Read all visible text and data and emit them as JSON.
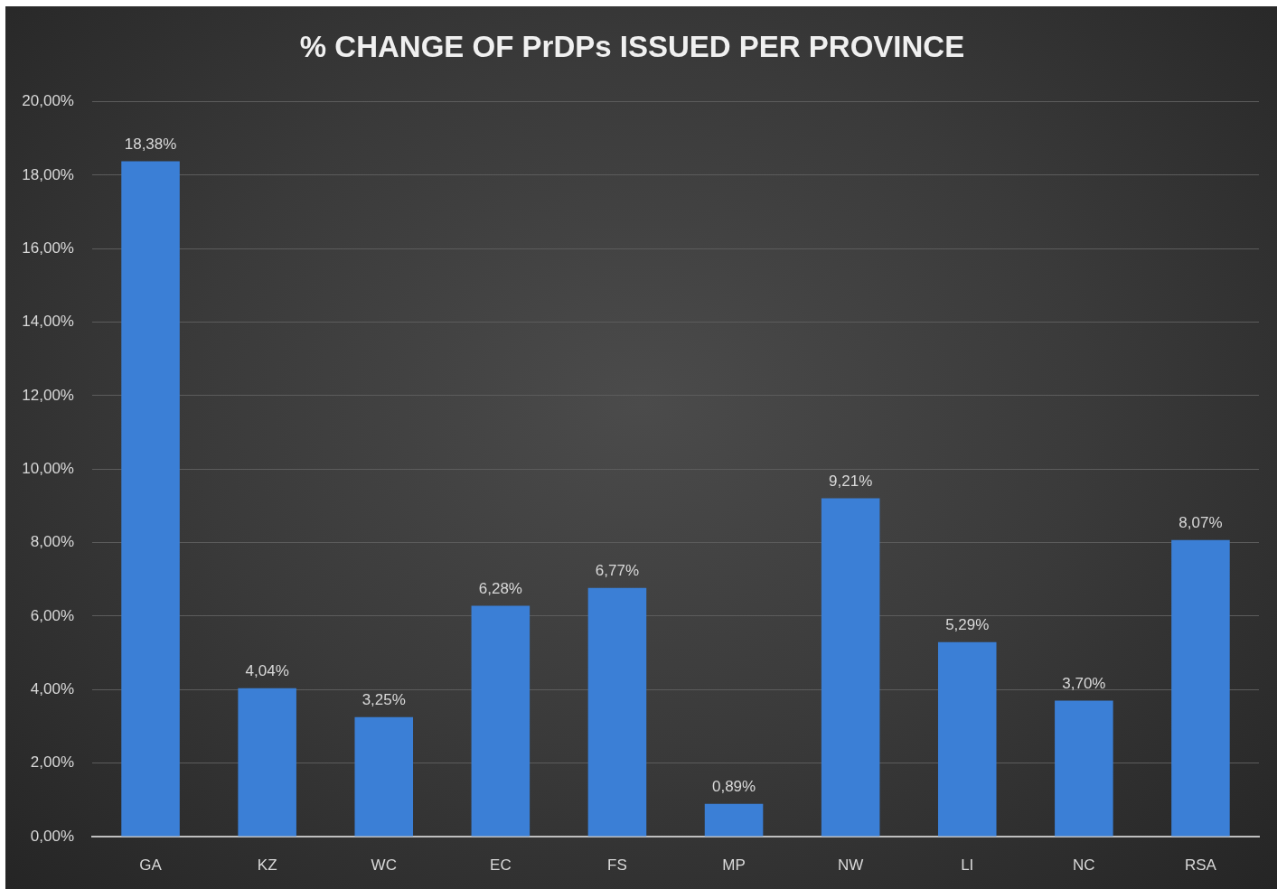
{
  "chart_data": {
    "type": "bar",
    "title": "% CHANGE OF PrDPs ISSUED PER PROVINCE",
    "categories": [
      "GA",
      "KZ",
      "WC",
      "EC",
      "FS",
      "MP",
      "NW",
      "LI",
      "NC",
      "RSA"
    ],
    "values": [
      18.38,
      4.04,
      3.25,
      6.28,
      6.77,
      0.89,
      9.21,
      5.29,
      3.7,
      8.07
    ],
    "color": "#3b7fd6",
    "value_labels": [
      "18,38%",
      "4,04%",
      "3,25%",
      "6,28%",
      "6,77%",
      "0,89%",
      "9,21%",
      "5,29%",
      "3,70%",
      "8,07%"
    ],
    "ylim": [
      0,
      20
    ],
    "yticks": [
      {
        "value": 0,
        "label": "0,00%"
      },
      {
        "value": 2,
        "label": "2,00%"
      },
      {
        "value": 4,
        "label": "4,00%"
      },
      {
        "value": 6,
        "label": "6,00%"
      },
      {
        "value": 8,
        "label": "8,00%"
      },
      {
        "value": 10,
        "label": "10,00%"
      },
      {
        "value": 12,
        "label": "12,00%"
      },
      {
        "value": 14,
        "label": "14,00%"
      },
      {
        "value": 16,
        "label": "16,00%"
      },
      {
        "value": 18,
        "label": "18,00%"
      },
      {
        "value": 20,
        "label": "20,00%"
      }
    ],
    "grid": "y"
  }
}
